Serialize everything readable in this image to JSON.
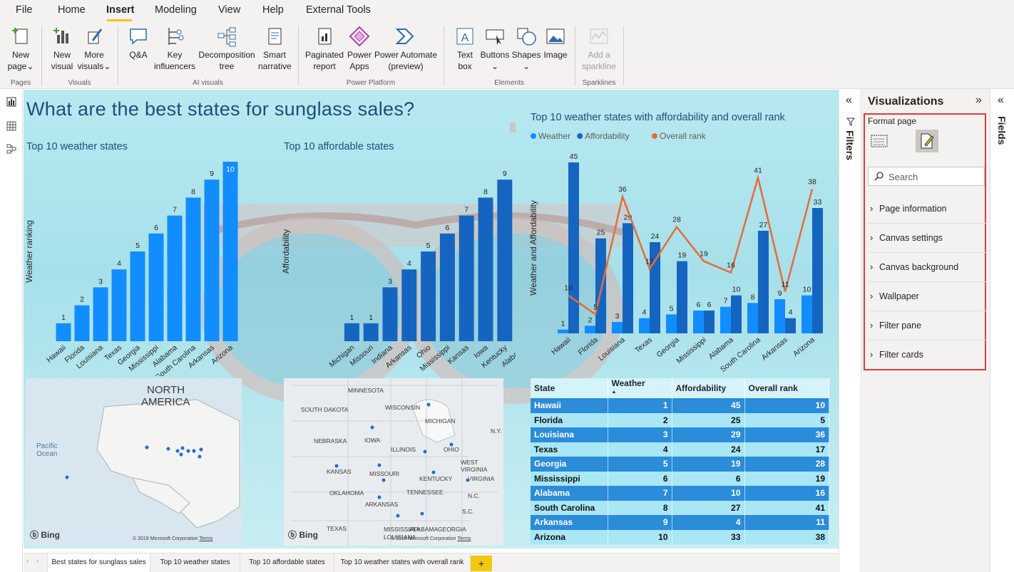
{
  "menu": {
    "items": [
      "File",
      "Home",
      "Insert",
      "Modeling",
      "View",
      "Help",
      "External Tools"
    ],
    "active": "Insert"
  },
  "ribbon": {
    "new_page": [
      "New",
      "page"
    ],
    "new_visual": [
      "New",
      "visual"
    ],
    "more_visuals": [
      "More",
      "visuals"
    ],
    "qa": "Q&A",
    "key_influencers": [
      "Key",
      "influencers"
    ],
    "decomposition_tree": [
      "Decomposition",
      "tree"
    ],
    "smart_narrative": [
      "Smart",
      "narrative"
    ],
    "paginated_report": [
      "Paginated",
      "report"
    ],
    "power_apps": [
      "Power",
      "Apps"
    ],
    "power_automate": [
      "Power Automate",
      "(preview)"
    ],
    "text_box": [
      "Text",
      "box"
    ],
    "buttons": "Buttons",
    "shapes": "Shapes",
    "image": "Image",
    "add_sparkline": [
      "Add a",
      "sparkline"
    ],
    "groups": [
      "Pages",
      "Visuals",
      "AI visuals",
      "Power Platform",
      "Elements",
      "Sparklines"
    ]
  },
  "report": {
    "title": "What are the best states for sunglass sales?"
  },
  "chart_data": [
    {
      "type": "bar",
      "title": "Top 10 weather states",
      "ylabel": "Weather ranking",
      "xlabel": "",
      "categories": [
        "Hawaii",
        "Florida",
        "Louisiana",
        "Texas",
        "Georgia",
        "Mississippi",
        "Alabama",
        "South Carolina",
        "Arkansas",
        "Arizona"
      ],
      "values": [
        1,
        2,
        3,
        4,
        5,
        6,
        7,
        8,
        9,
        10
      ],
      "ylim": [
        0,
        10
      ],
      "color": "#118dff"
    },
    {
      "type": "bar",
      "title": "Top 10 affordable states",
      "ylabel": "Affordability",
      "xlabel": "",
      "categories": [
        "Michigan",
        "Missouri",
        "Indiana",
        "Arkansas",
        "Ohio",
        "Mississippi",
        "Kansas",
        "Iowa",
        "Kentucky",
        "Alabama"
      ],
      "values": [
        1,
        1,
        3,
        4,
        5,
        6,
        7,
        8,
        9,
        10
      ],
      "ylim": [
        0,
        10
      ],
      "color": "#1565c0"
    },
    {
      "type": "bar",
      "title": "Top 10 weather states with affordability and overall rank",
      "ylabel": "Weather and Affordability",
      "xlabel": "",
      "categories": [
        "Hawaii",
        "Florida",
        "Louisiana",
        "Texas",
        "Georgia",
        "Mississippi",
        "Alabama",
        "South Carolina",
        "Arkansas",
        "Arizona"
      ],
      "series": [
        {
          "name": "Weather",
          "values": [
            1,
            2,
            3,
            4,
            5,
            6,
            7,
            8,
            9,
            10
          ],
          "color": "#118dff"
        },
        {
          "name": "Affordability",
          "values": [
            45,
            25,
            29,
            24,
            19,
            6,
            10,
            27,
            4,
            33
          ],
          "color": "#1565c0"
        },
        {
          "name": "Overall rank",
          "values": [
            10,
            5,
            36,
            17,
            28,
            19,
            16,
            41,
            11,
            38
          ],
          "color": "#e66c37",
          "type": "line"
        }
      ],
      "ylim": [
        0,
        45
      ],
      "legend": "top-left"
    }
  ],
  "maps": {
    "map1": {
      "label1": "NORTH",
      "label2": "AMERICA",
      "ocean1": "Pacific",
      "ocean2": "Ocean",
      "bing": "Bing",
      "copyright": "© 2019 Microsoft Corporation",
      "terms": "Terms"
    },
    "map2": {
      "labels": [
        "MINNESOTA",
        "WISCONSIN",
        "SOUTH DAKOTA",
        "MICHIGAN",
        "IOWA",
        "NEBRASKA",
        "ILLINOIS",
        "OHIO",
        "N.Y.",
        "KANSAS",
        "MISSOURI",
        "WEST",
        "VIRGINIA",
        "KENTUCKY",
        "VIRGINIA",
        "OKLAHOMA",
        "TENNESSEE",
        "ARKANSAS",
        "N.C.",
        "S.C.",
        "TEXAS",
        "MISSISSIPPI",
        "ALABAMA",
        "GEORGIA",
        "LOUISIANA"
      ],
      "bing": "Bing",
      "copyright": "© 2019 Microsoft Corporation",
      "terms": "Terms"
    }
  },
  "table": {
    "headers": [
      "State",
      "Weather",
      "Affordability",
      "Overall rank"
    ],
    "rows": [
      [
        "Hawaii",
        "1",
        "45",
        "10"
      ],
      [
        "Florida",
        "2",
        "25",
        "5"
      ],
      [
        "Louisiana",
        "3",
        "29",
        "36"
      ],
      [
        "Texas",
        "4",
        "24",
        "17"
      ],
      [
        "Georgia",
        "5",
        "19",
        "28"
      ],
      [
        "Mississippi",
        "6",
        "6",
        "19"
      ],
      [
        "Alabama",
        "7",
        "10",
        "16"
      ],
      [
        "South Carolina",
        "8",
        "27",
        "41"
      ],
      [
        "Arkansas",
        "9",
        "4",
        "11"
      ],
      [
        "Arizona",
        "10",
        "33",
        "38"
      ]
    ]
  },
  "tabs": [
    "Best states for sunglass sales",
    "Top 10 weather states",
    "Top 10 affordable states",
    "Top 10 weather states with overall rank"
  ],
  "add_tab": "+",
  "filters_label": "Filters",
  "fields_label": "Fields",
  "viz": {
    "title": "Visualizations",
    "format_page": "Format page",
    "search_placeholder": "Search",
    "sections": [
      "Page information",
      "Canvas settings",
      "Canvas background",
      "Wallpaper",
      "Filter pane",
      "Filter cards"
    ]
  }
}
